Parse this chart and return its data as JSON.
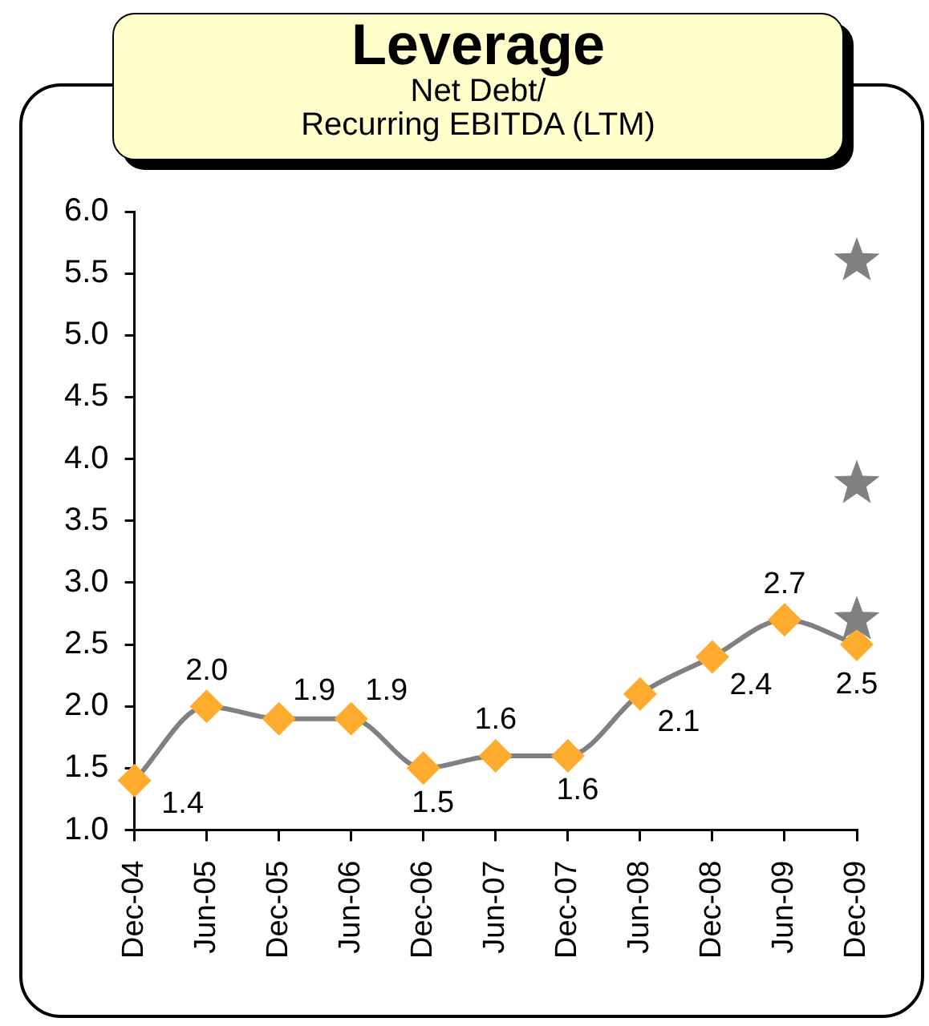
{
  "chart_data": {
    "type": "line",
    "title": "Leverage",
    "subtitle": "Net Debt/\nRecurring EBITDA (LTM)",
    "categories": [
      "Dec-04",
      "Jun-05",
      "Dec-05",
      "Jun-06",
      "Dec-06",
      "Jun-07",
      "Dec-07",
      "Jun-08",
      "Dec-08",
      "Jun-09",
      "Dec-09"
    ],
    "series": [
      {
        "type": "line",
        "color": "#808080",
        "colors": [
          "#ffab2e",
          "#ffab2e",
          "#ffab2e",
          "#ffab2e",
          "#ffab2e",
          "#ffab2e",
          "#ffab2e",
          "#ffab2e",
          "#ffab2e",
          "#ffab2e",
          "#ffab2e"
        ],
        "marker": "diamond",
        "values": [
          1.4,
          2.0,
          1.9,
          1.9,
          1.5,
          1.6,
          1.6,
          2.1,
          2.4,
          2.7,
          2.5
        ],
        "value_labels": [
          "1.4",
          "2.0",
          "1.9",
          "1.9",
          "1.5",
          "1.6",
          "1.6",
          "2.1",
          "2.4",
          "2.7",
          "2.5"
        ]
      },
      {
        "type": "scatter",
        "x": [
          "Dec-09",
          "Dec-09",
          "Dec-09"
        ],
        "color": "#808080",
        "marker": "star",
        "values": [
          5.6,
          3.8,
          2.7
        ]
      }
    ],
    "ylim": [
      1,
      6
    ],
    "yticks": [
      {
        "value": 1,
        "label": "1.0"
      },
      1.5,
      {
        "value": 2,
        "label": "2.0"
      },
      2.5,
      {
        "value": 3,
        "label": "3.0"
      },
      3.5,
      {
        "value": 4,
        "label": "4.0"
      },
      4.5,
      {
        "value": 5,
        "label": "5.0"
      },
      5.5,
      {
        "value": 6,
        "label": "6.0"
      }
    ],
    "grid": false,
    "legend": false,
    "line_style": "solid"
  }
}
